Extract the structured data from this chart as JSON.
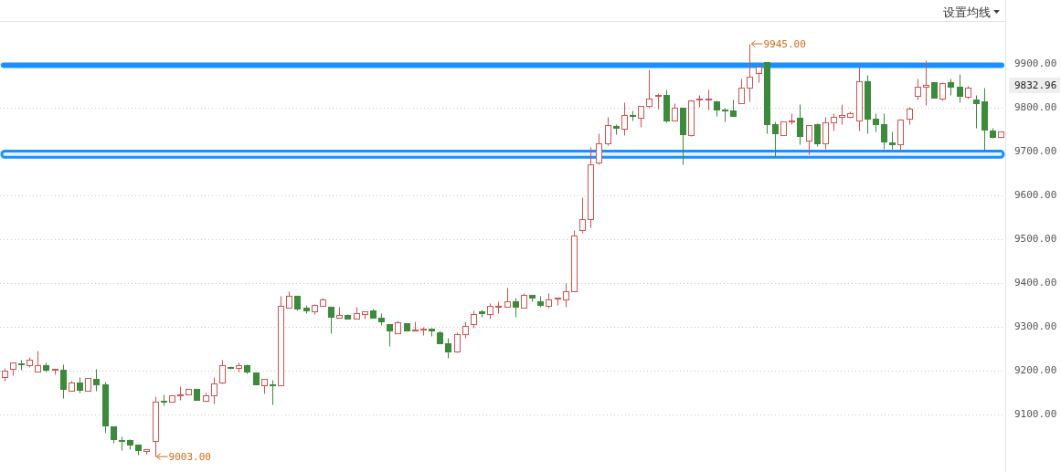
{
  "chart_data": {
    "type": "candlestick",
    "categories": [
      null,
      null,
      null,
      null,
      null,
      null,
      null,
      null,
      null,
      null,
      null,
      null,
      null,
      null,
      null,
      null,
      null,
      null,
      null,
      null,
      null,
      null,
      null,
      null,
      null,
      null,
      null,
      null,
      null,
      null,
      null,
      null,
      null,
      null,
      null,
      null,
      null,
      null,
      null,
      null,
      null,
      null,
      null,
      null,
      null,
      null,
      null,
      null,
      null,
      null,
      null,
      null,
      null,
      null,
      null,
      null,
      null,
      null,
      null,
      null,
      null,
      null,
      null,
      null,
      null,
      null,
      null,
      null,
      null,
      null,
      null,
      null,
      null,
      null,
      null,
      null,
      null,
      null,
      null,
      null,
      null,
      null,
      null,
      null,
      null,
      null,
      null,
      null,
      null,
      null,
      null,
      null,
      null,
      null,
      null,
      null,
      null,
      null,
      null,
      null,
      null,
      null,
      null,
      null,
      null,
      null,
      null,
      null,
      null,
      null,
      null,
      null,
      null,
      null,
      null,
      null,
      null,
      null,
      null,
      null
    ],
    "ohlc": [
      [
        9185,
        9205,
        9176,
        9200
      ],
      [
        9203,
        9217,
        9189,
        9217
      ],
      [
        9216,
        9225,
        9202,
        9214
      ],
      [
        9211,
        9230,
        9207,
        9225
      ],
      [
        9198,
        9246,
        9198,
        9211
      ],
      [
        9211,
        9217,
        9198,
        9201
      ],
      [
        9201,
        9203,
        9191,
        9203
      ],
      [
        9202,
        9214,
        9137,
        9157
      ],
      [
        9154,
        9176,
        9154,
        9173
      ],
      [
        9173,
        9185,
        9150,
        9155
      ],
      [
        9154,
        9183,
        9154,
        9182
      ],
      [
        9180,
        9204,
        9154,
        9168
      ],
      [
        9167,
        9174,
        9058,
        9074
      ],
      [
        9073,
        9073,
        9034,
        9043
      ],
      [
        9040,
        9050,
        9017,
        9038
      ],
      [
        9040,
        9042,
        9019,
        9030
      ],
      [
        9030,
        9030,
        9008,
        9018
      ],
      [
        9015,
        9021,
        9010,
        9021
      ],
      [
        9039,
        9140,
        9003,
        9129
      ],
      [
        9131,
        9146,
        9119,
        9129
      ],
      [
        9129,
        9142,
        9129,
        9142
      ],
      [
        9143,
        9164,
        9133,
        9145
      ],
      [
        9144,
        9158,
        9144,
        9158
      ],
      [
        9158,
        9158,
        9133,
        9133
      ],
      [
        9131,
        9149,
        9131,
        9142
      ],
      [
        9142,
        9185,
        9124,
        9171
      ],
      [
        9173,
        9224,
        9171,
        9211
      ],
      [
        9207,
        9209,
        9204,
        9205
      ],
      [
        9206,
        9218,
        9197,
        9211
      ],
      [
        9211,
        9214,
        9192,
        9197
      ],
      [
        9196,
        9196,
        9168,
        9168
      ],
      [
        9166,
        9181,
        9147,
        9181
      ],
      [
        9167,
        9178,
        9122,
        9165
      ],
      [
        9166,
        9371,
        9166,
        9348
      ],
      [
        9343,
        9380,
        9343,
        9371
      ],
      [
        9371,
        9371,
        9337,
        9341
      ],
      [
        9342,
        9349,
        9331,
        9337
      ],
      [
        9335,
        9352,
        9329,
        9349
      ],
      [
        9348,
        9365,
        9348,
        9362
      ],
      [
        9344,
        9344,
        9284,
        9322
      ],
      [
        9321,
        9346,
        9321,
        9327
      ],
      [
        9326,
        9328,
        9318,
        9318
      ],
      [
        9317,
        9346,
        9317,
        9331
      ],
      [
        9329,
        9335,
        9317,
        9335
      ],
      [
        9336,
        9341,
        9321,
        9321
      ],
      [
        9319,
        9331,
        9303,
        9312
      ],
      [
        9305,
        9306,
        9255,
        9291
      ],
      [
        9285,
        9314,
        9285,
        9310
      ],
      [
        9308,
        9308,
        9291,
        9291
      ],
      [
        9290,
        9311,
        9290,
        9292
      ],
      [
        9293,
        9300,
        9281,
        9294
      ],
      [
        9294,
        9298,
        9278,
        9291
      ],
      [
        9286,
        9290,
        9262,
        9262
      ],
      [
        9261,
        9274,
        9228,
        9243
      ],
      [
        9243,
        9287,
        9241,
        9283
      ],
      [
        9283,
        9312,
        9274,
        9301
      ],
      [
        9306,
        9337,
        9297,
        9329
      ],
      [
        9334,
        9338,
        9322,
        9331
      ],
      [
        9329,
        9353,
        9317,
        9348
      ],
      [
        9344,
        9357,
        9331,
        9347
      ],
      [
        9345,
        9388,
        9345,
        9358
      ],
      [
        9358,
        9365,
        9322,
        9345
      ],
      [
        9343,
        9376,
        9343,
        9373
      ],
      [
        9373,
        9373,
        9357,
        9366
      ],
      [
        9358,
        9369,
        9345,
        9350
      ],
      [
        9348,
        9376,
        9343,
        9362
      ],
      [
        9364,
        9365,
        9350,
        9365
      ],
      [
        9362,
        9399,
        9345,
        9381
      ],
      [
        9381,
        9519,
        9381,
        9508
      ],
      [
        9519,
        9594,
        9513,
        9546
      ],
      [
        9546,
        9709,
        9526,
        9671
      ],
      [
        9675,
        9740,
        9669,
        9718
      ],
      [
        9718,
        9779,
        9713,
        9760
      ],
      [
        9758,
        9761,
        9739,
        9754
      ],
      [
        9751,
        9812,
        9737,
        9783
      ],
      [
        9783,
        9792,
        9770,
        9781
      ],
      [
        9777,
        9803,
        9756,
        9803
      ],
      [
        9803,
        9886,
        9800,
        9821
      ],
      [
        9827,
        9833,
        9798,
        9828
      ],
      [
        9828,
        9840,
        9765,
        9770
      ],
      [
        9769,
        9810,
        9769,
        9800
      ],
      [
        9800,
        9800,
        9671,
        9739
      ],
      [
        9737,
        9817,
        9735,
        9815
      ],
      [
        9817,
        9829,
        9801,
        9821
      ],
      [
        9819,
        9840,
        9796,
        9821
      ],
      [
        9813,
        9815,
        9780,
        9796
      ],
      [
        9795,
        9800,
        9767,
        9794
      ],
      [
        9792,
        9817,
        9780,
        9780
      ],
      [
        9810,
        9865,
        9810,
        9846
      ],
      [
        9846,
        9945,
        9814,
        9871
      ],
      [
        9879,
        9892,
        9857,
        9892
      ],
      [
        9904,
        9904,
        9740,
        9762
      ],
      [
        9762,
        9767,
        9688,
        9741
      ],
      [
        9737,
        9767,
        9737,
        9767
      ],
      [
        9768,
        9787,
        9762,
        9769
      ],
      [
        9777,
        9807,
        9716,
        9735
      ],
      [
        9725,
        9760,
        9692,
        9760
      ],
      [
        9761,
        9763,
        9711,
        9718
      ],
      [
        9717,
        9779,
        9705,
        9765
      ],
      [
        9765,
        9787,
        9748,
        9779
      ],
      [
        9779,
        9807,
        9762,
        9782
      ],
      [
        9779,
        9791,
        9777,
        9787
      ],
      [
        9769,
        9892,
        9748,
        9860
      ],
      [
        9860,
        9874,
        9740,
        9775
      ],
      [
        9774,
        9787,
        9746,
        9762
      ],
      [
        9761,
        9787,
        9705,
        9723
      ],
      [
        9721,
        9744,
        9705,
        9716
      ],
      [
        9715,
        9775,
        9699,
        9772
      ],
      [
        9774,
        9801,
        9762,
        9798
      ],
      [
        9827,
        9865,
        9817,
        9848
      ],
      [
        9848,
        9907,
        9806,
        9852
      ],
      [
        9857,
        9857,
        9822,
        9822
      ],
      [
        9820,
        9857,
        9815,
        9855
      ],
      [
        9857,
        9865,
        9828,
        9848
      ],
      [
        9847,
        9876,
        9812,
        9827
      ],
      [
        9824,
        9849,
        9820,
        9845
      ],
      [
        9817,
        9829,
        9753,
        9810
      ],
      [
        9813,
        9844,
        9702,
        9749
      ],
      [
        9748,
        9754,
        9731,
        9733
      ],
      [
        9732,
        9744,
        9732,
        9744
      ]
    ],
    "colors": [
      "#d65050",
      "#d65050",
      "#3a8c3a",
      "#d65050",
      "#d65050",
      "#3a8c3a",
      "#d65050",
      "#3a8c3a",
      "#d65050",
      "#3a8c3a",
      "#d65050",
      "#3a8c3a",
      "#3a8c3a",
      "#3a8c3a",
      "#3a8c3a",
      "#3a8c3a",
      "#3a8c3a",
      "#d65050",
      "#d65050",
      "#3a8c3a",
      "#d65050",
      "#d65050",
      "#d65050",
      "#3a8c3a",
      "#d65050",
      "#d65050",
      "#d65050",
      "#3a8c3a",
      "#d65050",
      "#3a8c3a",
      "#3a8c3a",
      "#d65050",
      "#3a8c3a",
      "#d65050",
      "#d65050",
      "#3a8c3a",
      "#3a8c3a",
      "#d65050",
      "#d65050",
      "#3a8c3a",
      "#d65050",
      "#3a8c3a",
      "#d65050",
      "#d65050",
      "#3a8c3a",
      "#3a8c3a",
      "#3a8c3a",
      "#d65050",
      "#3a8c3a",
      "#d65050",
      "#d65050",
      "#3a8c3a",
      "#3a8c3a",
      "#3a8c3a",
      "#d65050",
      "#d65050",
      "#d65050",
      "#3a8c3a",
      "#d65050",
      "#d65050",
      "#d65050",
      "#3a8c3a",
      "#d65050",
      "#3a8c3a",
      "#3a8c3a",
      "#d65050",
      "#d65050",
      "#d65050",
      "#d65050",
      "#d65050",
      "#d65050",
      "#d65050",
      "#d65050",
      "#3a8c3a",
      "#d65050",
      "#3a8c3a",
      "#d65050",
      "#d65050",
      "#d65050",
      "#3a8c3a",
      "#d65050",
      "#3a8c3a",
      "#d65050",
      "#d65050",
      "#d65050",
      "#3a8c3a",
      "#3a8c3a",
      "#3a8c3a",
      "#d65050",
      "#d65050",
      "#d65050",
      "#3a8c3a",
      "#3a8c3a",
      "#d65050",
      "#d65050",
      "#3a8c3a",
      "#d65050",
      "#3a8c3a",
      "#d65050",
      "#d65050",
      "#d65050",
      "#d65050",
      "#d65050",
      "#3a8c3a",
      "#3a8c3a",
      "#3a8c3a",
      "#3a8c3a",
      "#d65050",
      "#d65050",
      "#d65050",
      "#d65050",
      "#3a8c3a",
      "#d65050",
      "#3a8c3a",
      "#3a8c3a",
      "#d65050",
      "#3a8c3a",
      "#3a8c3a",
      "#3a8c3a",
      "#d65050"
    ],
    "ylim": [
      8970,
      9995
    ],
    "yticks": [
      {
        "value": 9100,
        "label": "9100.00"
      },
      {
        "value": 9200,
        "label": "9200.00"
      },
      {
        "value": 9300,
        "label": "9300.00"
      },
      {
        "value": 9400,
        "label": "9400.00"
      },
      {
        "value": 9500,
        "label": "9500.00"
      },
      {
        "value": 9600,
        "label": "9600.00"
      },
      {
        "value": 9700,
        "label": "9700.00"
      },
      {
        "value": 9800,
        "label": "9800.00"
      },
      {
        "value": 9900,
        "label": "9900.00"
      }
    ],
    "grid": "y",
    "tick_labels": "y",
    "ref_lines": [
      {
        "axis": "y",
        "value": 9896,
        "color": "#1890ff"
      }
    ],
    "bands": [
      {
        "axis": "y",
        "from": 9686,
        "to": 9700,
        "color": "#1890ff"
      }
    ],
    "annotations": [
      "9945.00",
      "9003.00",
      "9832.96",
      "设置均线"
    ]
  }
}
